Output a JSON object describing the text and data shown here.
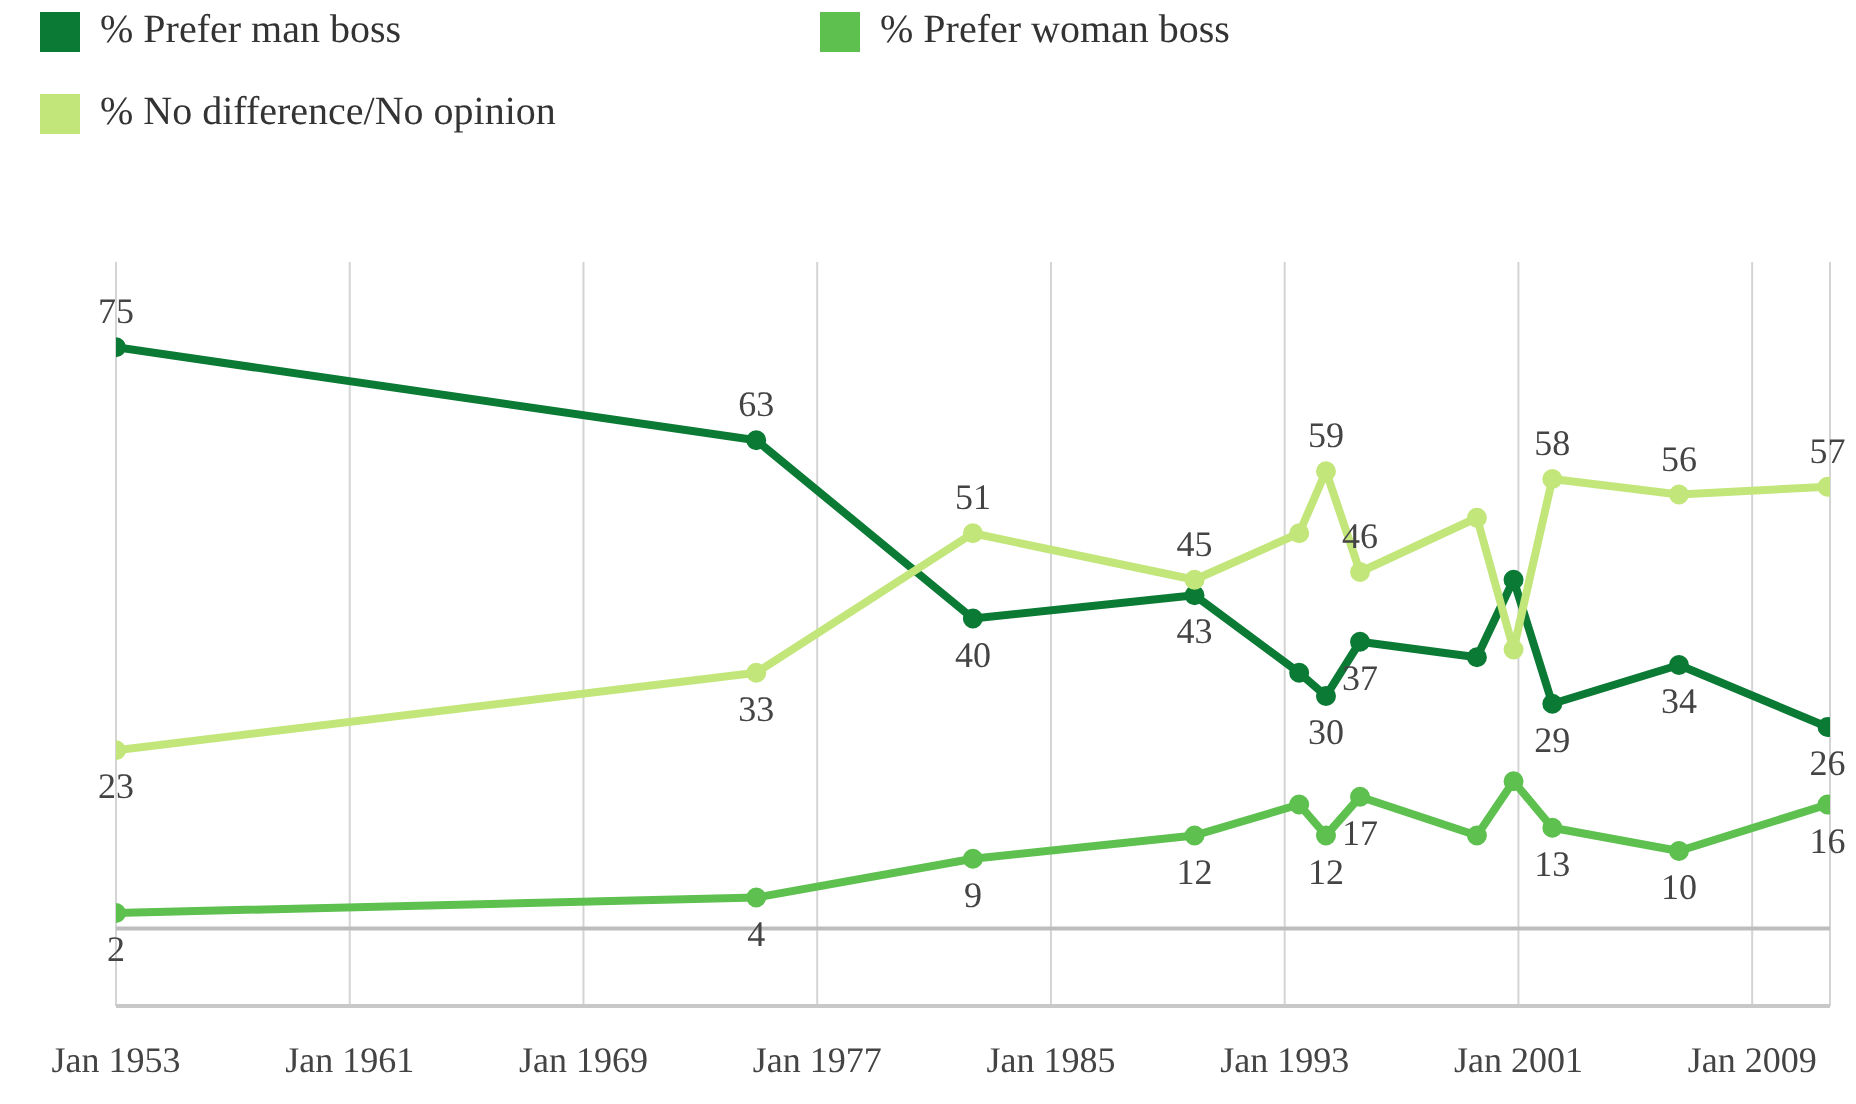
{
  "chart_data": {
    "type": "line",
    "x": [
      "1953-01",
      "1974-12",
      "1982-05",
      "1989-12",
      "1993-07",
      "1994-06",
      "1995-08",
      "1999-08",
      "2000-11",
      "2002-03",
      "2006-07",
      "2011-08"
    ],
    "series": [
      {
        "name": "% Prefer man boss",
        "color": "#0b7a35",
        "values": [
          75,
          63,
          40,
          43,
          33,
          30,
          37,
          35,
          45,
          29,
          34,
          26
        ],
        "value_labels": [
          "75",
          "63",
          "40",
          "43",
          null,
          "30",
          "37",
          null,
          null,
          "29",
          "34",
          "26"
        ]
      },
      {
        "name": "% Prefer woman boss",
        "color": "#5dc04f",
        "values": [
          2,
          4,
          9,
          12,
          16,
          12,
          17,
          12,
          19,
          13,
          10,
          16
        ],
        "value_labels": [
          "2",
          "4",
          "9",
          "12",
          null,
          "12",
          "17",
          null,
          null,
          "13",
          "10",
          "16"
        ]
      },
      {
        "name": "% No difference/No opinion",
        "color": "#c3e67b",
        "values": [
          23,
          33,
          51,
          45,
          51,
          59,
          46,
          53,
          36,
          58,
          56,
          57
        ],
        "value_labels": [
          "23",
          "33",
          "51",
          "45",
          null,
          "59",
          "46",
          null,
          null,
          "58",
          "56",
          "57"
        ]
      }
    ],
    "xlim": [
      "1953-01",
      "2011-09"
    ],
    "xticks": [
      {
        "value": "1953-01",
        "label": "Jan 1953"
      },
      {
        "value": "1961-01",
        "label": "Jan 1961"
      },
      {
        "value": "1969-01",
        "label": "Jan 1969"
      },
      {
        "value": "1977-01",
        "label": "Jan 1977"
      },
      {
        "value": "1985-01",
        "label": "Jan 1985"
      },
      {
        "value": "1993-01",
        "label": "Jan 1993"
      },
      {
        "value": "2001-01",
        "label": "Jan 2001"
      },
      {
        "value": "2009-01",
        "label": "Jan 2009"
      }
    ],
    "ylim": [
      -10,
      86
    ],
    "tick_labels": "x",
    "ref_lines": [
      {
        "axis": "y",
        "value": 0,
        "color": "#bdbdbd"
      }
    ],
    "grid": "x",
    "legend": "top left",
    "marker": "circle",
    "line_style": "solid"
  }
}
